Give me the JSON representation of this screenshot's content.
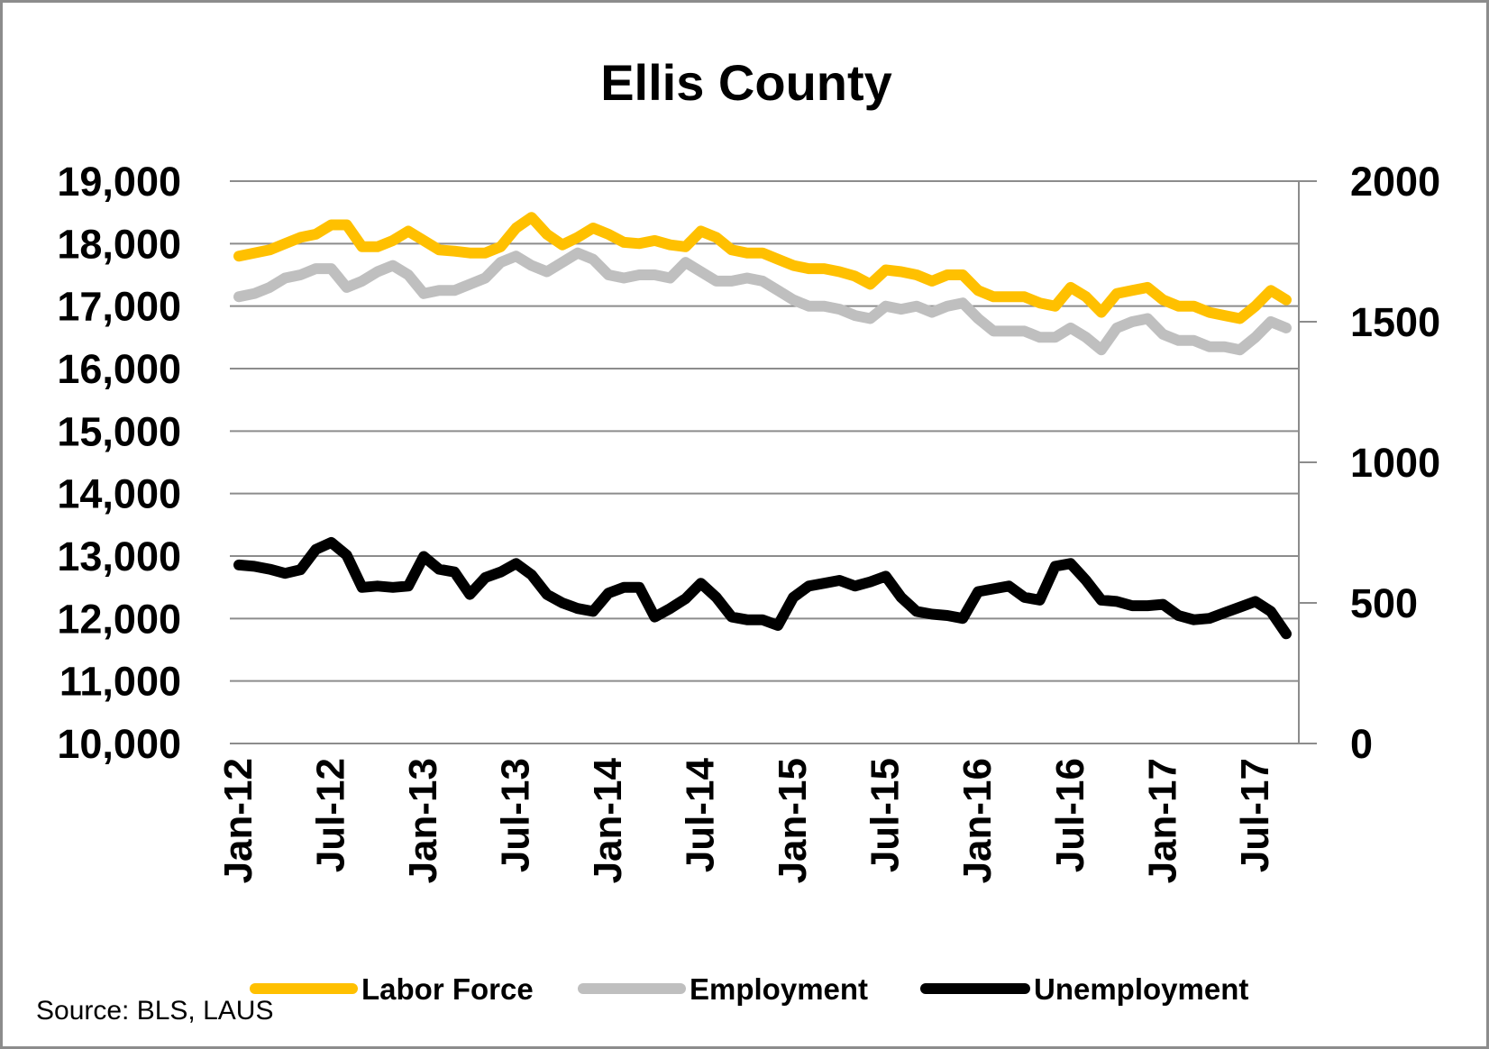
{
  "chart_data": {
    "type": "line",
    "title": "Ellis County",
    "source": "Source: BLS, LAUS",
    "colors": {
      "Labor Force": "#FFC000",
      "Employment": "#BFBFBF",
      "Unemployment": "#000000",
      "grid": "#8C8C8C"
    },
    "x_tick_labels": [
      "Jan-12",
      "Jul-12",
      "Jan-13",
      "Jul-13",
      "Jan-14",
      "Jul-14",
      "Jan-15",
      "Jul-15",
      "Jan-16",
      "Jul-16",
      "Jan-17",
      "Jul-17"
    ],
    "y_left": {
      "ylim": [
        10000,
        19000
      ],
      "ticks": [
        10000,
        11000,
        12000,
        13000,
        14000,
        15000,
        16000,
        17000,
        18000,
        19000
      ],
      "tick_labels": [
        "10,000",
        "11,000",
        "12,000",
        "13,000",
        "14,000",
        "15,000",
        "16,000",
        "17,000",
        "18,000",
        "19,000"
      ]
    },
    "y_right": {
      "ylim": [
        0,
        2000
      ],
      "ticks": [
        0,
        500,
        1000,
        1500,
        2000
      ],
      "tick_labels": [
        "0",
        "500",
        "1000",
        "1500",
        "2000"
      ]
    },
    "grid": true,
    "legend_position": "bottom",
    "x": [
      "Jan-12",
      "Feb-12",
      "Mar-12",
      "Apr-12",
      "May-12",
      "Jun-12",
      "Jul-12",
      "Aug-12",
      "Sep-12",
      "Oct-12",
      "Nov-12",
      "Dec-12",
      "Jan-13",
      "Feb-13",
      "Mar-13",
      "Apr-13",
      "May-13",
      "Jun-13",
      "Jul-13",
      "Aug-13",
      "Sep-13",
      "Oct-13",
      "Nov-13",
      "Dec-13",
      "Jan-14",
      "Feb-14",
      "Mar-14",
      "Apr-14",
      "May-14",
      "Jun-14",
      "Jul-14",
      "Aug-14",
      "Sep-14",
      "Oct-14",
      "Nov-14",
      "Dec-14",
      "Jan-15",
      "Feb-15",
      "Mar-15",
      "Apr-15",
      "May-15",
      "Jun-15",
      "Jul-15",
      "Aug-15",
      "Sep-15",
      "Oct-15",
      "Nov-15",
      "Dec-15",
      "Jan-16",
      "Feb-16",
      "Mar-16",
      "Apr-16",
      "May-16",
      "Jun-16",
      "Jul-16",
      "Aug-16",
      "Sep-16",
      "Oct-16",
      "Nov-16",
      "Dec-16",
      "Jan-17",
      "Feb-17",
      "Mar-17",
      "Apr-17",
      "May-17",
      "Jun-17",
      "Jul-17",
      "Aug-17",
      "Sep-17"
    ],
    "series": [
      {
        "name": "Labor Force",
        "axis": "left",
        "values": [
          17800,
          17850,
          17900,
          18000,
          18100,
          18150,
          18300,
          18300,
          17950,
          17950,
          18050,
          18200,
          18050,
          17900,
          17880,
          17850,
          17850,
          17950,
          18250,
          18420,
          18150,
          17980,
          18100,
          18250,
          18150,
          18020,
          18000,
          18050,
          17980,
          17950,
          18200,
          18100,
          17900,
          17850,
          17850,
          17750,
          17650,
          17600,
          17600,
          17550,
          17480,
          17350,
          17580,
          17550,
          17500,
          17400,
          17500,
          17500,
          17250,
          17150,
          17150,
          17150,
          17050,
          17000,
          17300,
          17150,
          16900,
          17200,
          17250,
          17300,
          17100,
          17000,
          17000,
          16900,
          16850,
          16800,
          17000,
          17250,
          17100
        ]
      },
      {
        "name": "Employment",
        "axis": "left",
        "values": [
          17150,
          17200,
          17300,
          17450,
          17500,
          17600,
          17600,
          17300,
          17400,
          17550,
          17650,
          17500,
          17200,
          17250,
          17250,
          17350,
          17450,
          17700,
          17800,
          17650,
          17550,
          17700,
          17850,
          17750,
          17500,
          17450,
          17500,
          17500,
          17450,
          17700,
          17550,
          17400,
          17400,
          17450,
          17400,
          17250,
          17100,
          17000,
          17000,
          16950,
          16850,
          16800,
          17000,
          16950,
          17000,
          16900,
          17000,
          17050,
          16800,
          16600,
          16600,
          16600,
          16500,
          16500,
          16650,
          16500,
          16300,
          16650,
          16750,
          16800,
          16550,
          16450,
          16450,
          16350,
          16350,
          16300,
          16500,
          16750,
          16650
        ]
      },
      {
        "name": "Unemployment",
        "axis": "right",
        "values": [
          635,
          630,
          620,
          605,
          618,
          690,
          715,
          670,
          555,
          560,
          555,
          560,
          665,
          620,
          610,
          530,
          590,
          610,
          640,
          600,
          530,
          500,
          480,
          470,
          535,
          555,
          555,
          450,
          480,
          515,
          570,
          520,
          450,
          440,
          440,
          420,
          520,
          560,
          570,
          580,
          560,
          575,
          595,
          520,
          470,
          460,
          455,
          445,
          540,
          550,
          560,
          520,
          510,
          630,
          640,
          580,
          510,
          505,
          490,
          490,
          495,
          455,
          440,
          445,
          465,
          485,
          505,
          470,
          390
        ]
      }
    ]
  }
}
